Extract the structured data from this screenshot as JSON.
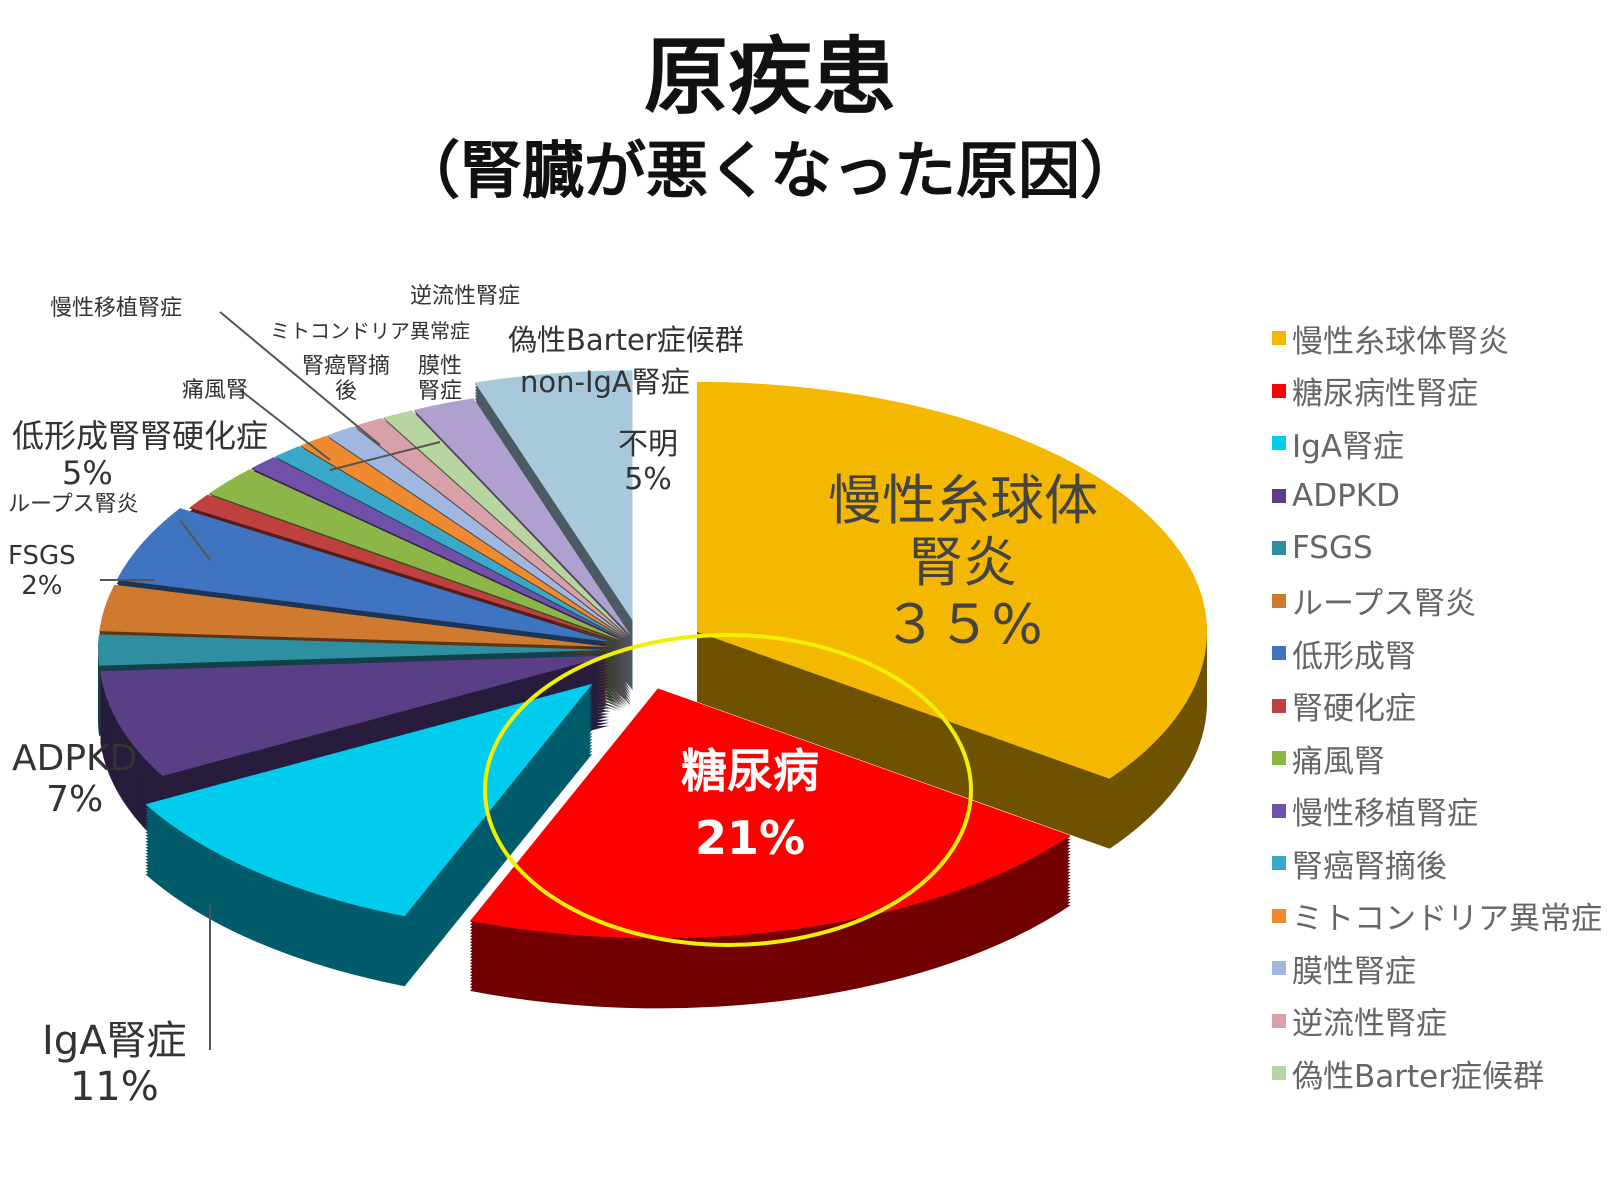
{
  "title": "原疾患",
  "subtitle": "（腎臓が悪くなった原因）",
  "chart_data": {
    "type": "pie",
    "style": "3d-exploded",
    "slices": [
      {
        "name": "慢性糸球体腎炎",
        "value": 35,
        "color": "#F5B800"
      },
      {
        "name": "糖尿病性腎症",
        "value": 21,
        "color": "#FF0000"
      },
      {
        "name": "IgA腎症",
        "value": 11,
        "color": "#00CCEE"
      },
      {
        "name": "ADPKD",
        "value": 7,
        "color": "#5B3F86"
      },
      {
        "name": "FSGS",
        "value": 2,
        "color": "#2E8FA0"
      },
      {
        "name": "ループス腎炎",
        "value": 3,
        "color": "#D07A30"
      },
      {
        "name": "低形成腎",
        "value": 5,
        "color": "#3F74C0"
      },
      {
        "name": "腎硬化症",
        "value": 1,
        "color": "#C04040"
      },
      {
        "name": "痛風腎",
        "value": 2,
        "color": "#8DB648"
      },
      {
        "name": "慢性移植腎症",
        "value": 1,
        "color": "#7050A8"
      },
      {
        "name": "腎癌腎摘後",
        "value": 1,
        "color": "#3AA8C8"
      },
      {
        "name": "ミトコンドリア異常症",
        "value": 1,
        "color": "#F08A30"
      },
      {
        "name": "膜性腎症",
        "value": 1,
        "color": "#A0B8E0"
      },
      {
        "name": "逆流性腎症",
        "value": 1,
        "color": "#D8A0A8"
      },
      {
        "name": "偽性Barter症候群",
        "value": 1,
        "color": "#B8D4A0"
      },
      {
        "name": "non-IgA腎症",
        "value": 2,
        "color": "#B0A0D0"
      },
      {
        "name": "不明",
        "value": 5,
        "color": "#A8C8DC"
      }
    ],
    "data_labels": [
      {
        "text": "慢性糸球体",
        "text2": "腎炎",
        "pct": "３５%"
      },
      {
        "text": "糖尿病",
        "pct": "21%"
      },
      {
        "text": "IgA腎症",
        "pct": "11%"
      },
      {
        "text": "ADPKD",
        "pct": "7%"
      },
      {
        "text": "FSGS",
        "pct": "2%"
      },
      {
        "text": "ループス腎炎"
      },
      {
        "text": "低形成腎",
        "pct": "5%"
      },
      {
        "text": "腎硬化症"
      },
      {
        "text": "痛風腎"
      },
      {
        "text": "慢性移植腎症"
      },
      {
        "text": "腎癌腎摘",
        "text2": "後"
      },
      {
        "text": "ミトコンドリア異常症"
      },
      {
        "text": "膜性",
        "text2": "腎症"
      },
      {
        "text": "逆流性腎症"
      },
      {
        "text": "偽性Barter症候群"
      },
      {
        "text": "non-IgA腎症"
      },
      {
        "text": "不明",
        "pct": "5%"
      }
    ],
    "legend": [
      "慢性糸球体腎炎",
      "糖尿病性腎症",
      "IgA腎症",
      "ADPKD",
      "FSGS",
      "ループス腎炎",
      "低形成腎",
      "腎硬化症",
      "痛風腎",
      "慢性移植腎症",
      "腎癌腎摘後",
      "ミトコンドリア異常症",
      "膜性腎症",
      "逆流性腎症",
      "偽性Barter症候群"
    ],
    "legend_position": "right",
    "highlight": {
      "slice": "糖尿病性腎症",
      "color": "#F0F000"
    }
  }
}
